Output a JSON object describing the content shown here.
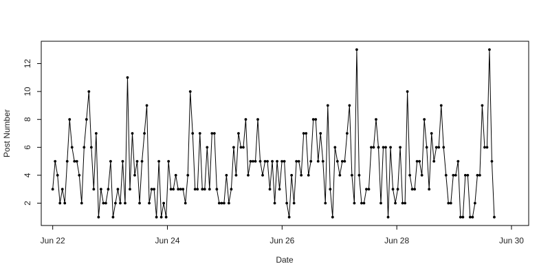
{
  "chart_data": {
    "type": "line",
    "title": "",
    "xlabel": "Date",
    "ylabel": "Post Number",
    "xlim": [
      -0.2,
      8.3
    ],
    "ylim": [
      0.4,
      13.6
    ],
    "x_ticks": [
      {
        "value": 0,
        "label": "Jun 22"
      },
      {
        "value": 2,
        "label": "Jun 24"
      },
      {
        "value": 4,
        "label": "Jun 26"
      },
      {
        "value": 6,
        "label": "Jun 28"
      },
      {
        "value": 8,
        "label": "Jun 30"
      }
    ],
    "y_ticks": [
      2,
      4,
      6,
      8,
      10,
      12
    ],
    "line_color": "#000000",
    "series": [
      {
        "values": [
          3,
          5,
          4,
          2,
          3,
          2,
          5,
          8,
          6,
          5,
          5,
          4,
          2,
          6,
          8,
          10,
          6,
          3,
          7,
          1,
          3,
          2,
          2,
          3,
          5,
          1,
          2,
          3,
          2,
          5,
          2,
          11,
          3,
          7,
          4,
          5,
          2,
          5,
          7,
          9,
          2,
          3,
          3,
          1,
          5,
          1,
          2,
          1,
          5,
          3,
          3,
          4,
          3,
          3,
          3,
          2,
          4,
          10,
          7,
          3,
          3,
          7,
          3,
          3,
          6,
          3,
          7,
          7,
          3,
          2,
          2,
          2,
          4,
          2,
          3,
          6,
          4,
          7,
          6,
          6,
          8,
          4,
          5,
          5,
          5,
          8,
          5,
          4,
          5,
          5,
          3,
          5,
          2,
          5,
          3,
          5,
          5,
          2,
          1,
          4,
          2,
          5,
          5,
          4,
          7,
          7,
          4,
          5,
          8,
          8,
          5,
          7,
          5,
          2,
          9,
          3,
          1,
          6,
          5,
          4,
          5,
          5,
          7,
          9,
          4,
          2,
          13,
          4,
          2,
          2,
          3,
          3,
          6,
          6,
          8,
          6,
          2,
          6,
          6,
          1,
          6,
          3,
          2,
          3,
          6,
          2,
          2,
          10,
          4,
          3,
          3,
          5,
          5,
          4,
          8,
          6,
          3,
          7,
          5,
          6,
          6,
          9,
          6,
          4,
          2,
          2,
          4,
          4,
          5,
          1,
          1,
          4,
          4,
          1,
          1,
          2,
          4,
          4,
          9,
          6,
          6,
          13,
          5,
          1
        ]
      }
    ]
  }
}
